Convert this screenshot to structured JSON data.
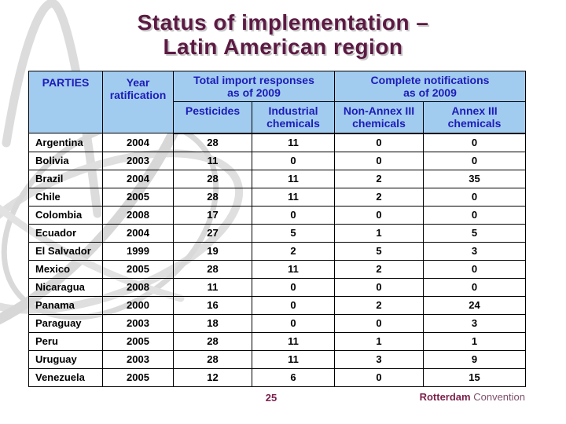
{
  "title": {
    "line1": "Status of implementation –",
    "line2": "Latin American region"
  },
  "table": {
    "headers": {
      "parties": "PARTIES",
      "year_ratification": "Year\nratification",
      "total_import_responses": "Total import responses\nas of 2009",
      "complete_notifications": "Complete notifications\nas of 2009",
      "sub": {
        "pesticides": "Pesticides",
        "industrial": "Industrial\nchemicals",
        "non_annex": "Non-Annex III\nchemicals",
        "annex": "Annex III\nchemicals"
      }
    },
    "rows": [
      {
        "party": "Argentina",
        "year": "2004",
        "pesticides": "28",
        "industrial": "11",
        "non_annex": "0",
        "annex": "0"
      },
      {
        "party": "Bolivia",
        "year": "2003",
        "pesticides": "11",
        "industrial": "0",
        "non_annex": "0",
        "annex": "0"
      },
      {
        "party": "Brazil",
        "year": "2004",
        "pesticides": "28",
        "industrial": "11",
        "non_annex": "2",
        "annex": "35"
      },
      {
        "party": "Chile",
        "year": "2005",
        "pesticides": "28",
        "industrial": "11",
        "non_annex": "2",
        "annex": "0"
      },
      {
        "party": "Colombia",
        "year": "2008",
        "pesticides": "17",
        "industrial": "0",
        "non_annex": "0",
        "annex": "0"
      },
      {
        "party": "Ecuador",
        "year": "2004",
        "pesticides": "27",
        "industrial": "5",
        "non_annex": "1",
        "annex": "5"
      },
      {
        "party": "El Salvador",
        "year": "1999",
        "pesticides": "19",
        "industrial": "2",
        "non_annex": "5",
        "annex": "3"
      },
      {
        "party": "Mexico",
        "year": "2005",
        "pesticides": "28",
        "industrial": "11",
        "non_annex": "2",
        "annex": "0"
      },
      {
        "party": "Nicaragua",
        "year": "2008",
        "pesticides": "11",
        "industrial": "0",
        "non_annex": "0",
        "annex": "0"
      },
      {
        "party": "Panama",
        "year": "2000",
        "pesticides": "16",
        "industrial": "0",
        "non_annex": "2",
        "annex": "24"
      },
      {
        "party": "Paraguay",
        "year": "2003",
        "pesticides": "18",
        "industrial": "0",
        "non_annex": "0",
        "annex": "3"
      },
      {
        "party": "Peru",
        "year": "2005",
        "pesticides": "28",
        "industrial": "11",
        "non_annex": "1",
        "annex": "1"
      },
      {
        "party": "Uruguay",
        "year": "2003",
        "pesticides": "28",
        "industrial": "11",
        "non_annex": "3",
        "annex": "9"
      },
      {
        "party": "Venezuela",
        "year": "2005",
        "pesticides": "12",
        "industrial": "6",
        "non_annex": "0",
        "annex": "15"
      }
    ]
  },
  "footer": {
    "page_number": "25",
    "brand_bold": "Rotterdam",
    "brand_rest": " Convention"
  },
  "colors": {
    "title_text": "#5C1A43",
    "header_background": "#A2CBF0",
    "header_text": "#1C1CB8",
    "year_text": "#B22222",
    "brand_bold_text": "#7B1F4B",
    "watermark_gray": "#DCDCDC"
  }
}
